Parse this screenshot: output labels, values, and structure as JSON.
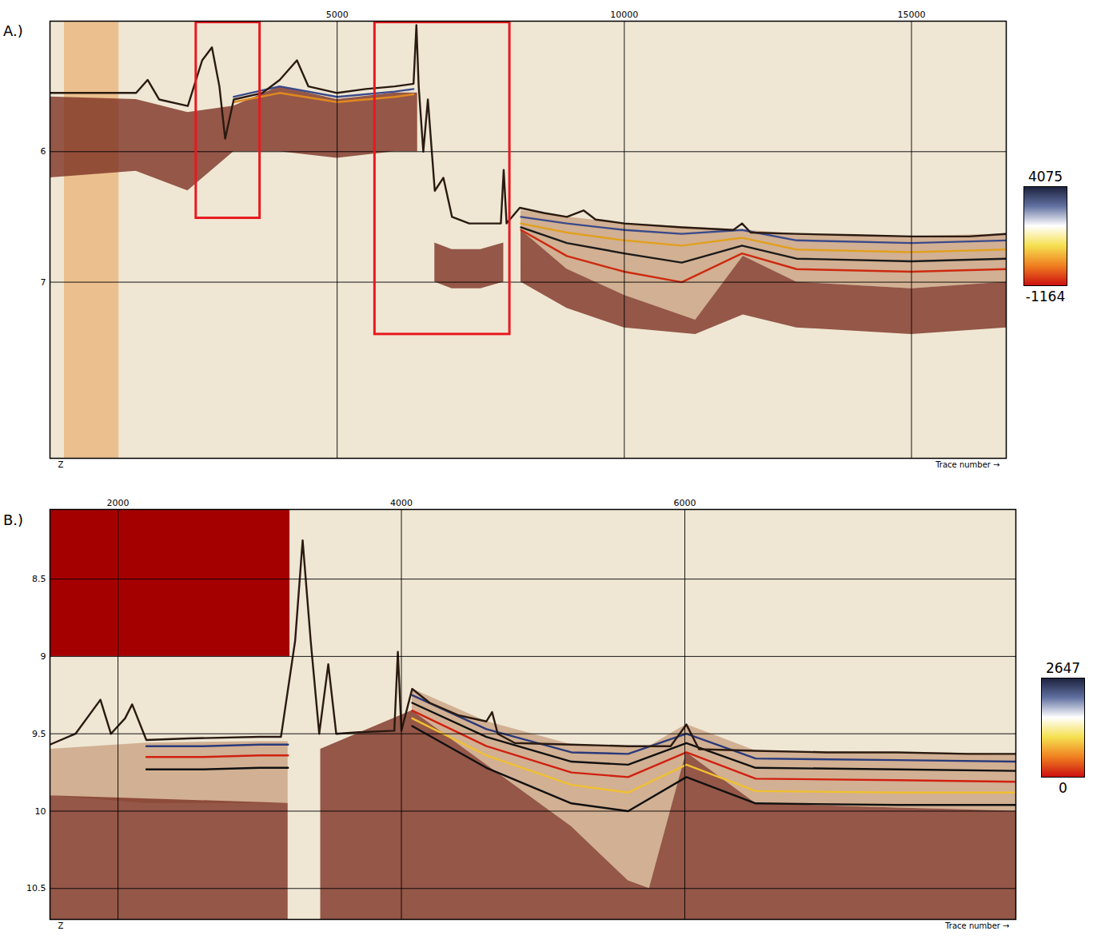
{
  "chart_data": [
    {
      "type": "seismic",
      "panel_label": "A.)",
      "xlabel": "Trace number →",
      "ylabel": "Z",
      "xlim": [
        0,
        16650
      ],
      "xticks": [
        5000,
        10000,
        15000
      ],
      "ylim": [
        8.35,
        5.0
      ],
      "yticks": [
        6,
        7
      ],
      "grid": true,
      "rects": [
        {
          "type": "filled",
          "color": "#ebc08e",
          "x": [
            250,
            1200
          ],
          "y": [
            5.0,
            8.35
          ]
        },
        {
          "type": "outline",
          "color": "#e8191f",
          "x": [
            2545,
            3656
          ],
          "y": [
            5.01,
            6.51
          ]
        },
        {
          "type": "outline",
          "color": "#e8191f",
          "x": [
            5657,
            8006
          ],
          "y": [
            5.01,
            7.4
          ]
        }
      ],
      "series": [
        {
          "type": "area",
          "color": "#7a2e20",
          "x": [
            0,
            1500,
            2400,
            3200,
            4000,
            5000,
            6000,
            6400
          ],
          "values": [
            5.58,
            5.6,
            5.7,
            5.65,
            5.5,
            5.6,
            5.55,
            5.55
          ],
          "lower": [
            6.2,
            6.15,
            6.3,
            6.0,
            6.0,
            6.05,
            6.0,
            6.0
          ]
        },
        {
          "type": "area",
          "color": "#7a2e20",
          "x": [
            6700,
            7000,
            7500,
            7900
          ],
          "values": [
            6.7,
            6.75,
            6.75,
            6.7
          ],
          "lower": [
            7.0,
            7.05,
            7.05,
            7.0
          ]
        },
        {
          "type": "area",
          "color": "#c9a080",
          "x": [
            8200,
            9000,
            10000,
            11240,
            12070,
            13000,
            15000,
            16650
          ],
          "values": [
            6.45,
            6.5,
            6.55,
            6.58,
            6.6,
            6.63,
            6.65,
            6.63
          ],
          "lower": [
            6.6,
            6.9,
            7.1,
            7.29,
            6.8,
            7.0,
            7.05,
            7.0
          ]
        },
        {
          "type": "area",
          "color": "#7a2e20",
          "x": [
            8200,
            9000,
            10000,
            11240,
            12070,
            13000,
            15000,
            16650
          ],
          "values": [
            6.6,
            6.9,
            7.1,
            7.29,
            6.8,
            7.0,
            7.05,
            7.0
          ],
          "lower": [
            7.0,
            7.2,
            7.35,
            7.4,
            7.25,
            7.35,
            7.4,
            7.35
          ]
        },
        {
          "type": "line",
          "color": "#3a4a8a",
          "x": [
            3200,
            4000,
            5000,
            6000,
            6330
          ],
          "values": [
            5.58,
            5.5,
            5.58,
            5.54,
            5.52
          ]
        },
        {
          "type": "line",
          "color": "#e08a20",
          "x": [
            3200,
            4000,
            5000,
            6000,
            6330
          ],
          "values": [
            5.62,
            5.55,
            5.62,
            5.58,
            5.56
          ]
        },
        {
          "type": "line",
          "color": "#3a4a8a",
          "x": [
            8200,
            9000,
            10000,
            11000,
            12050,
            13000,
            15000,
            16650
          ],
          "values": [
            6.5,
            6.55,
            6.6,
            6.63,
            6.6,
            6.68,
            6.7,
            6.68
          ]
        },
        {
          "type": "line",
          "color": "#e0a020",
          "x": [
            8200,
            9000,
            10000,
            11000,
            12050,
            13000,
            15000,
            16650
          ],
          "values": [
            6.55,
            6.62,
            6.68,
            6.72,
            6.66,
            6.75,
            6.77,
            6.75
          ]
        },
        {
          "type": "line",
          "color": "#1a1a1a",
          "x": [
            8200,
            9000,
            10000,
            11000,
            12050,
            13000,
            15000,
            16650
          ],
          "values": [
            6.58,
            6.7,
            6.78,
            6.85,
            6.72,
            6.82,
            6.84,
            6.82
          ]
        },
        {
          "type": "line",
          "color": "#cc2a10",
          "x": [
            8200,
            9000,
            10000,
            11000,
            12050,
            13000,
            15000,
            16650
          ],
          "values": [
            6.6,
            6.8,
            6.92,
            7.0,
            6.78,
            6.9,
            6.92,
            6.9
          ]
        },
        {
          "type": "line",
          "color": "#2a1a10",
          "x": [
            0,
            1500,
            1700,
            1900,
            2400,
            2650,
            2820,
            2950,
            3050,
            3200,
            3700,
            4000,
            4300,
            4500,
            5000,
            5500,
            6000,
            6330,
            6380,
            6420,
            6500,
            6580,
            6700,
            6850,
            7000,
            7300,
            7850,
            7900,
            7950,
            8180,
            8600,
            9000,
            9290,
            9500,
            10000,
            11000,
            11900,
            12050,
            12200,
            13000,
            14000,
            15000,
            16000,
            16650
          ],
          "values": [
            5.55,
            5.55,
            5.45,
            5.6,
            5.65,
            5.3,
            5.2,
            5.5,
            5.9,
            5.6,
            5.55,
            5.45,
            5.3,
            5.5,
            5.55,
            5.52,
            5.5,
            5.48,
            5.03,
            5.5,
            6.0,
            5.6,
            6.3,
            6.2,
            6.5,
            6.55,
            6.55,
            6.14,
            6.55,
            6.43,
            6.47,
            6.5,
            6.45,
            6.52,
            6.55,
            6.58,
            6.6,
            6.55,
            6.62,
            6.63,
            6.64,
            6.65,
            6.65,
            6.63
          ]
        }
      ],
      "colorbar": {
        "range": [
          -1164,
          4075
        ],
        "ticks": [
          4075,
          -1164
        ],
        "colors": [
          "#1a1f3a",
          "#6070a0",
          "#ffffff",
          "#f5e050",
          "#f08020",
          "#cc1010"
        ]
      }
    },
    {
      "type": "seismic",
      "panel_label": "B.)",
      "xlabel": "Trace number →",
      "ylabel": "Z",
      "xlim": [
        1520,
        8336
      ],
      "xticks": [
        2000,
        4000,
        6000
      ],
      "ylim": [
        10.7,
        8.05
      ],
      "yticks": [
        8.5,
        9,
        9.5,
        10,
        10.5
      ],
      "grid": true,
      "rects": [
        {
          "type": "filled",
          "color": "#a50000",
          "x": [
            1520,
            3213
          ],
          "y": [
            8.05,
            9.0
          ]
        }
      ],
      "series": [
        {
          "type": "area",
          "color": "#c9a080",
          "x": [
            1520,
            2200,
            3000,
            3200
          ],
          "values": [
            9.6,
            9.56,
            9.55,
            9.55
          ],
          "lower": [
            9.9,
            9.95,
            9.95,
            9.95
          ]
        },
        {
          "type": "area",
          "color": "#7a2e20",
          "x": [
            1520,
            3200
          ],
          "values": [
            9.9,
            9.95
          ],
          "lower": [
            10.7,
            10.7
          ]
        },
        {
          "type": "area",
          "color": "#7a2e20",
          "x": [
            3430,
            4076
          ],
          "values": [
            9.6,
            9.35
          ],
          "lower": [
            10.7,
            10.7
          ]
        },
        {
          "type": "area",
          "color": "#c9a080",
          "x": [
            4076,
            4600,
            5200,
            5600,
            5750,
            6011,
            6500,
            7500,
            8336
          ],
          "values": [
            9.21,
            9.42,
            9.57,
            9.58,
            9.58,
            9.44,
            9.61,
            9.62,
            9.63
          ],
          "lower": [
            9.35,
            9.7,
            10.1,
            10.45,
            10.5,
            9.62,
            9.95,
            9.98,
            10.0
          ]
        },
        {
          "type": "area",
          "color": "#7a2e20",
          "x": [
            4076,
            4600,
            5200,
            5600,
            5750,
            6011,
            6500,
            7500,
            8336
          ],
          "values": [
            9.35,
            9.7,
            10.1,
            10.45,
            10.5,
            9.62,
            9.95,
            9.98,
            10.0
          ],
          "lower": [
            10.7,
            10.7,
            10.7,
            10.7,
            10.7,
            10.7,
            10.7,
            10.7,
            10.7
          ]
        },
        {
          "type": "line",
          "color": "#2a3a7a",
          "x": [
            2200,
            2600,
            3000,
            3200
          ],
          "values": [
            9.58,
            9.58,
            9.57,
            9.57
          ]
        },
        {
          "type": "line",
          "color": "#d02010",
          "x": [
            2200,
            2600,
            3000,
            3200
          ],
          "values": [
            9.65,
            9.65,
            9.64,
            9.64
          ]
        },
        {
          "type": "line",
          "color": "#101010",
          "x": [
            2200,
            2600,
            3000,
            3200
          ],
          "values": [
            9.73,
            9.73,
            9.72,
            9.72
          ]
        },
        {
          "type": "line",
          "color": "#2a3a7a",
          "x": [
            4076,
            4600,
            5200,
            5600,
            6011,
            6500,
            7500,
            8336
          ],
          "values": [
            9.25,
            9.47,
            9.62,
            9.63,
            9.5,
            9.66,
            9.67,
            9.68
          ]
        },
        {
          "type": "line",
          "color": "#101010",
          "x": [
            4076,
            4600,
            5200,
            5600,
            6011,
            6500,
            7500,
            8336
          ],
          "values": [
            9.3,
            9.52,
            9.68,
            9.7,
            9.56,
            9.72,
            9.73,
            9.74
          ]
        },
        {
          "type": "line",
          "color": "#d02010",
          "x": [
            4076,
            4600,
            5200,
            5600,
            6011,
            6500,
            7500,
            8336
          ],
          "values": [
            9.35,
            9.58,
            9.75,
            9.78,
            9.62,
            9.79,
            9.8,
            9.81
          ]
        },
        {
          "type": "line",
          "color": "#f0c030",
          "x": [
            4076,
            4600,
            5200,
            5600,
            6011,
            6500,
            7500,
            8336
          ],
          "values": [
            9.4,
            9.64,
            9.83,
            9.88,
            9.7,
            9.87,
            9.88,
            9.88
          ]
        },
        {
          "type": "line",
          "color": "#101010",
          "x": [
            4076,
            4600,
            5200,
            5600,
            6011,
            6500,
            7500,
            8336
          ],
          "values": [
            9.45,
            9.72,
            9.95,
            10.0,
            9.78,
            9.95,
            9.96,
            9.96
          ]
        },
        {
          "type": "line",
          "color": "#2a1a10",
          "x": [
            1520,
            1700,
            1876,
            1950,
            2050,
            2100,
            2200,
            2500,
            3000,
            3150,
            3250,
            3303,
            3360,
            3420,
            3484,
            3540,
            3700,
            3950,
            3975,
            4000,
            4076,
            4200,
            4400,
            4600,
            4640,
            4680,
            4800,
            5200,
            5600,
            5900,
            6011,
            6100,
            6500,
            7000,
            7500,
            8000,
            8336
          ],
          "values": [
            9.57,
            9.5,
            9.28,
            9.5,
            9.4,
            9.31,
            9.54,
            9.53,
            9.52,
            9.52,
            8.9,
            8.25,
            8.9,
            9.5,
            9.05,
            9.5,
            9.49,
            9.48,
            8.97,
            9.48,
            9.21,
            9.3,
            9.38,
            9.42,
            9.36,
            9.5,
            9.56,
            9.57,
            9.58,
            9.58,
            9.44,
            9.6,
            9.61,
            9.62,
            9.62,
            9.63,
            9.63
          ]
        }
      ],
      "colorbar": {
        "range": [
          0,
          2647
        ],
        "ticks": [
          2647,
          0
        ],
        "colors": [
          "#1a1f3a",
          "#6070a0",
          "#ffffff",
          "#f5e050",
          "#f08020",
          "#cc1010"
        ]
      }
    }
  ]
}
